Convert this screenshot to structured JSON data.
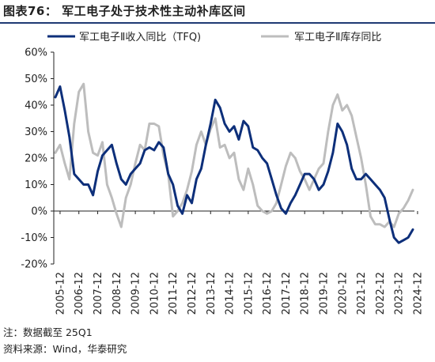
{
  "title": "图表76：  军工电子处于技术性主动补库区间",
  "note": "注：数据截至 25Q1",
  "source": "资料来源：Wind，华泰研究",
  "colors": {
    "series1": "#0d2f7a",
    "series2": "#bdbdbd",
    "axis": "#222222"
  },
  "chart_data": {
    "type": "line",
    "title": "",
    "xlabel": "",
    "ylabel": "",
    "ylim": [
      -20,
      60
    ],
    "yticks": [
      -20,
      -10,
      0,
      10,
      20,
      30,
      40,
      50,
      60
    ],
    "ytick_labels": [
      "-20%",
      "-10%",
      "0%",
      "10%",
      "20%",
      "30%",
      "40%",
      "50%",
      "60%"
    ],
    "xtick_labels": [
      "2005-12",
      "2006-12",
      "2007-12",
      "2008-12",
      "2009-12",
      "2010-12",
      "2011-12",
      "2012-12",
      "2013-12",
      "2014-12",
      "2015-12",
      "2016-12",
      "2017-12",
      "2018-12",
      "2019-12",
      "2020-12",
      "2021-12",
      "2022-12",
      "2023-12",
      "2024-12"
    ],
    "x_start": "2005-09",
    "x_step": "quarter",
    "grid": false,
    "legend": "top",
    "series": [
      {
        "name": "军工电子Ⅱ收入同比（TFQ)",
        "color": "#0d2f7a",
        "values": [
          43,
          47,
          38,
          28,
          14,
          12,
          10,
          10,
          6,
          15,
          21,
          23,
          25,
          18,
          12,
          10,
          14,
          16,
          18,
          23,
          24,
          23,
          26,
          24,
          14,
          10,
          2,
          -1,
          6,
          3,
          12,
          16,
          25,
          33,
          42,
          39,
          33,
          30,
          32,
          27,
          34,
          32,
          24,
          23,
          20,
          18,
          12,
          6,
          1,
          -1,
          3,
          6,
          10,
          14,
          14,
          12,
          8,
          10,
          15,
          22,
          33,
          30,
          25,
          16,
          12,
          12,
          14,
          12,
          10,
          8,
          5,
          -3,
          -10,
          -12,
          -11,
          -10,
          -7
        ]
      },
      {
        "name": "军工电子Ⅱ库存同比",
        "color": "#bdbdbd",
        "values": [
          22,
          25,
          18,
          12,
          33,
          45,
          48,
          30,
          22,
          21,
          26,
          10,
          5,
          -1,
          -6,
          5,
          10,
          18,
          25,
          23,
          33,
          33,
          32,
          21,
          14,
          -2,
          0,
          3,
          8,
          15,
          25,
          30,
          25,
          31,
          35,
          24,
          25,
          20,
          22,
          12,
          8,
          16,
          10,
          2,
          0,
          -1,
          0,
          3,
          10,
          17,
          22,
          20,
          15,
          12,
          8,
          12,
          16,
          18,
          30,
          40,
          44,
          38,
          40,
          36,
          28,
          20,
          10,
          -2,
          -5,
          -5,
          -6,
          -4,
          -6,
          -1,
          1,
          4,
          8
        ]
      }
    ]
  }
}
